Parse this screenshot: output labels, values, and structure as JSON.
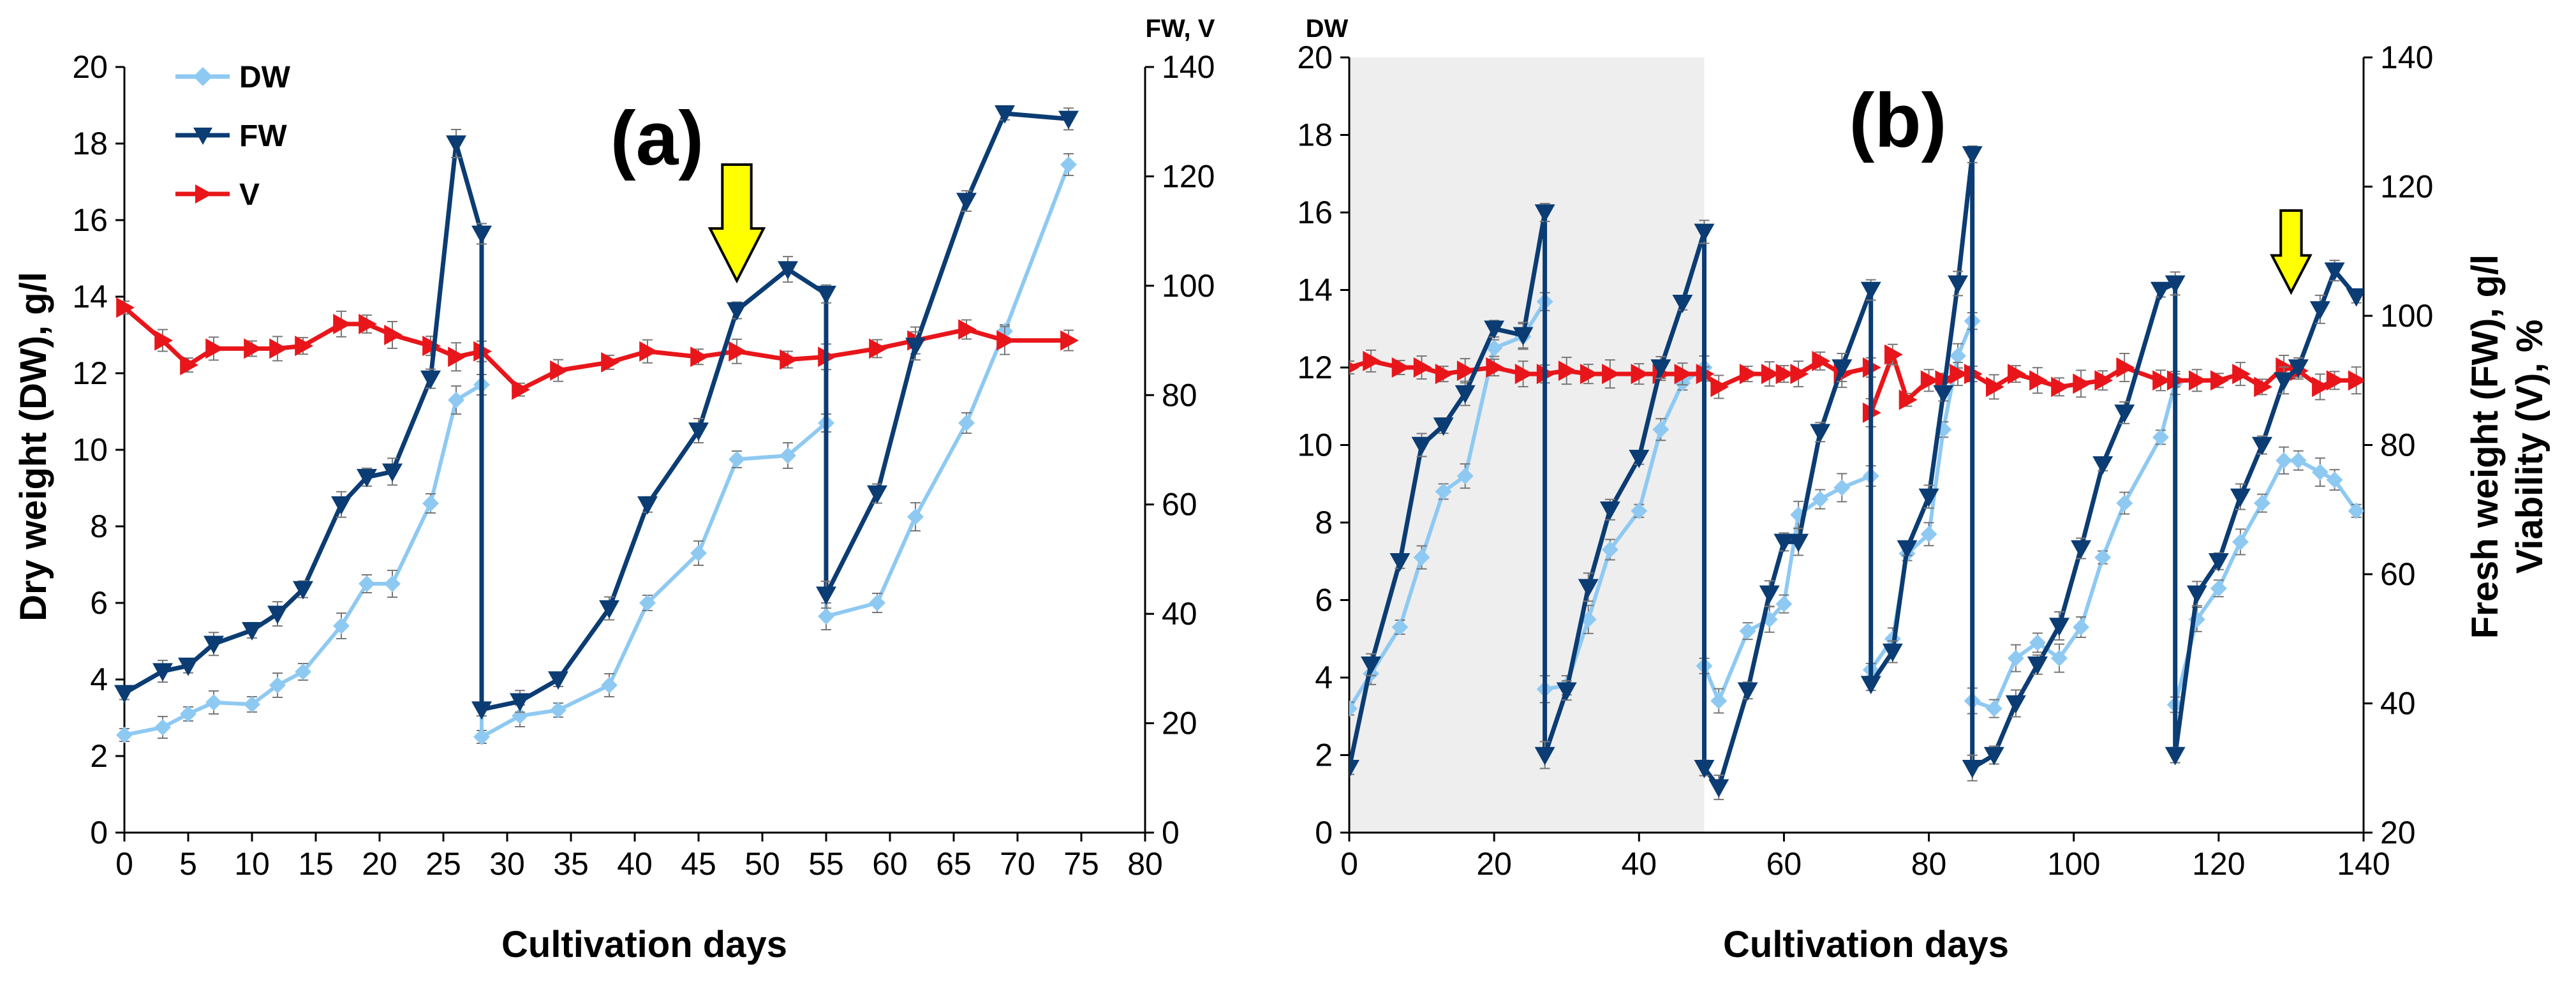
{
  "colors": {
    "DW": "#8ec9f2",
    "FW": "#0b3c73",
    "V": "#e8161a",
    "arrow_fill": "#ffff00",
    "shade": "#eeeeee",
    "errorbar": "#777777"
  },
  "chart_data": [
    {
      "type": "line",
      "panel_label": "(a)",
      "xlabel": "Cultivation days",
      "ylabel": "Dry weight (DW), g/l",
      "y2_corner_label": "FW, V",
      "y2label": "",
      "xlim": [
        0,
        80
      ],
      "ylim": [
        0,
        20
      ],
      "y2lim": [
        0,
        140
      ],
      "x_ticks": [
        "0",
        "5",
        "10",
        "15",
        "20",
        "25",
        "30",
        "35",
        "40",
        "45",
        "50",
        "55",
        "60",
        "65",
        "70",
        "75",
        "80"
      ],
      "y_ticks": [
        "0",
        "2",
        "4",
        "6",
        "8",
        "10",
        "12",
        "14",
        "16",
        "18",
        "20"
      ],
      "y2_ticks": [
        "0",
        "20",
        "40",
        "60",
        "80",
        "100",
        "120",
        "140"
      ],
      "legend": {
        "position": "top-left",
        "entries": [
          "DW",
          "FW",
          "V"
        ]
      },
      "arrow_day": 48,
      "series": [
        {
          "name": "DW",
          "axis": "left",
          "marker": "diamond",
          "x": [
            0,
            3,
            5,
            7,
            10,
            12,
            14,
            17,
            19,
            21,
            24,
            26,
            28,
            28,
            31,
            34,
            38,
            41,
            45,
            48,
            52,
            55,
            55,
            59,
            62,
            66,
            69,
            74
          ],
          "y": [
            2.55,
            2.75,
            3.1,
            3.4,
            3.35,
            3.85,
            4.2,
            5.4,
            6.5,
            6.5,
            8.6,
            11.3,
            11.7,
            2.5,
            3.05,
            3.2,
            3.85,
            6.0,
            7.3,
            9.75,
            9.85,
            10.7,
            5.65,
            6.0,
            8.25,
            10.7,
            13.1,
            17.45
          ]
        },
        {
          "name": "FW",
          "axis": "right",
          "marker": "triangle-down",
          "x": [
            0,
            3,
            5,
            7,
            10,
            12,
            14,
            17,
            19,
            21,
            24,
            26,
            28,
            28,
            31,
            34,
            38,
            41,
            45,
            48,
            52,
            55,
            55,
            59,
            62,
            66,
            69,
            74
          ],
          "y": [
            25.5,
            29.5,
            30.5,
            34.5,
            37.0,
            40.0,
            44.5,
            60.0,
            65.0,
            66.0,
            83.0,
            126.0,
            109.5,
            22.5,
            24.0,
            28.0,
            41.0,
            60.0,
            73.5,
            95.5,
            103.0,
            98.5,
            43.5,
            62.0,
            89.0,
            115.5,
            131.5,
            130.5
          ]
        },
        {
          "name": "V",
          "axis": "right",
          "marker": "triangle-right",
          "x": [
            0,
            3,
            5,
            7,
            10,
            12,
            14,
            17,
            19,
            21,
            24,
            26,
            28,
            31,
            34,
            38,
            41,
            45,
            48,
            52,
            55,
            59,
            62,
            66,
            69,
            74
          ],
          "y": [
            96.0,
            90.0,
            85.5,
            88.5,
            88.5,
            88.5,
            89.0,
            93.0,
            93.0,
            91.0,
            89.0,
            87.0,
            88.0,
            81.0,
            84.5,
            86.0,
            88.0,
            87.0,
            88.0,
            86.5,
            87.0,
            88.5,
            90.0,
            92.0,
            90.0,
            90.0
          ]
        }
      ]
    },
    {
      "type": "line",
      "panel_label": "(b)",
      "xlabel": "Cultivation days",
      "ylabel": "",
      "y_corner_label": "DW",
      "y2label": "Fresh weight (FW), g/l\nViability (V), %",
      "xlim": [
        0,
        140
      ],
      "ylim": [
        0,
        20
      ],
      "y2lim": [
        20,
        140
      ],
      "x_ticks": [
        "0",
        "20",
        "40",
        "60",
        "80",
        "100",
        "120",
        "140"
      ],
      "y_ticks": [
        "0",
        "2",
        "4",
        "6",
        "8",
        "10",
        "12",
        "14",
        "16",
        "18",
        "20"
      ],
      "y2_ticks": [
        "20",
        "40",
        "60",
        "80",
        "100",
        "120",
        "140"
      ],
      "shaded_x_range": [
        0,
        49
      ],
      "arrow_day": 130,
      "series": [
        {
          "name": "DW",
          "axis": "left",
          "marker": "diamond",
          "x": [
            0,
            3,
            7,
            10,
            13,
            16,
            20,
            24,
            27,
            27,
            30,
            33,
            36,
            40,
            43,
            46,
            49,
            49,
            51,
            55,
            58,
            60,
            62,
            65,
            68,
            72,
            72,
            75,
            77,
            80,
            82,
            84,
            86,
            86,
            89,
            92,
            95,
            98,
            101,
            104,
            107,
            112,
            114,
            114,
            117,
            120,
            123,
            126,
            129,
            131,
            134,
            136,
            139
          ],
          "y": [
            3.2,
            4.1,
            5.3,
            7.1,
            8.8,
            9.2,
            12.5,
            12.8,
            13.7,
            3.7,
            3.8,
            5.5,
            7.3,
            8.3,
            10.4,
            11.6,
            12.0,
            4.3,
            3.4,
            5.2,
            5.5,
            5.9,
            8.2,
            8.6,
            8.9,
            9.2,
            4.2,
            5.0,
            7.2,
            7.7,
            10.4,
            12.3,
            13.2,
            3.4,
            3.2,
            4.5,
            4.9,
            4.5,
            5.3,
            7.1,
            8.5,
            10.2,
            11.6,
            3.3,
            5.5,
            6.3,
            7.5,
            8.5,
            9.6,
            9.6,
            9.3,
            9.1,
            8.3
          ]
        },
        {
          "name": "FW",
          "axis": "right",
          "marker": "triangle-down",
          "x": [
            0,
            3,
            7,
            10,
            13,
            16,
            20,
            24,
            27,
            27,
            30,
            33,
            36,
            40,
            43,
            46,
            49,
            49,
            51,
            55,
            58,
            60,
            62,
            65,
            68,
            72,
            72,
            75,
            77,
            80,
            82,
            84,
            86,
            86,
            89,
            92,
            95,
            98,
            101,
            104,
            107,
            112,
            114,
            114,
            117,
            120,
            123,
            126,
            129,
            131,
            134,
            136,
            139
          ],
          "y": [
            30.0,
            46.0,
            62.0,
            80.0,
            83.0,
            88.0,
            98.0,
            97.0,
            116.0,
            32.0,
            42.0,
            58.0,
            70.0,
            78.0,
            92.0,
            102.0,
            113.0,
            30.0,
            27.0,
            42.0,
            57.0,
            65.0,
            65.0,
            82.0,
            92.0,
            104.0,
            43.0,
            48.0,
            64.0,
            72.0,
            88.0,
            105.0,
            125.0,
            30.0,
            32.0,
            40.0,
            46.0,
            52.0,
            64.0,
            77.0,
            85.0,
            104.0,
            105.0,
            32.0,
            57.0,
            62.0,
            72.0,
            80.0,
            90.0,
            92.0,
            101.0,
            107.0,
            103.0
          ]
        },
        {
          "name": "V",
          "axis": "right",
          "marker": "triangle-right",
          "x": [
            0,
            3,
            7,
            10,
            13,
            16,
            20,
            24,
            27,
            30,
            33,
            36,
            40,
            43,
            46,
            49,
            51,
            55,
            58,
            60,
            62,
            65,
            68,
            72,
            72,
            75,
            77,
            80,
            82,
            84,
            86,
            89,
            92,
            95,
            98,
            101,
            104,
            107,
            112,
            114,
            117,
            120,
            123,
            126,
            129,
            131,
            134,
            136,
            139
          ],
          "y": [
            92.0,
            93.0,
            92.0,
            92.0,
            91.0,
            91.5,
            92.0,
            91.0,
            91.0,
            91.5,
            91.0,
            91.0,
            91.0,
            91.0,
            91.0,
            91.0,
            89.0,
            91.0,
            91.0,
            91.0,
            91.0,
            93.0,
            91.0,
            92.0,
            85.0,
            94.0,
            87.0,
            90.0,
            90.0,
            91.0,
            91.0,
            89.0,
            91.0,
            90.0,
            89.0,
            89.5,
            90.0,
            92.0,
            90.0,
            90.0,
            90.0,
            90.0,
            91.0,
            89.0,
            92.0,
            91.5,
            89.0,
            90.0,
            90.0
          ]
        }
      ]
    }
  ]
}
